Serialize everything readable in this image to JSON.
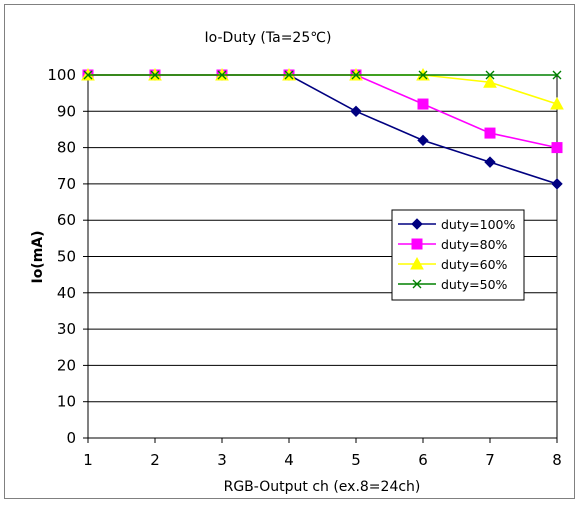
{
  "chart_data": {
    "type": "line",
    "title": "Io-Duty (Ta=25℃)",
    "xlabel": "RGB-Output ch (ex.8=24ch)",
    "ylabel": "Io(mA)",
    "x": [
      1,
      2,
      3,
      4,
      5,
      6,
      7,
      8
    ],
    "xlim": [
      1,
      8
    ],
    "ylim": [
      0,
      100
    ],
    "yticks": [
      0,
      10,
      20,
      30,
      40,
      50,
      60,
      70,
      80,
      90,
      100
    ],
    "grid": "horizontal",
    "legend_position": "right-middle",
    "series": [
      {
        "name": "duty=100%",
        "color": "#000080",
        "marker": "diamond",
        "values": [
          100,
          100,
          100,
          100,
          90,
          82,
          76,
          70
        ]
      },
      {
        "name": "duty=80%",
        "color": "#FF00FF",
        "marker": "square",
        "values": [
          100,
          100,
          100,
          100,
          100,
          92,
          84,
          80
        ]
      },
      {
        "name": "duty=60%",
        "color": "#FFFF00",
        "marker": "triangle",
        "values": [
          100,
          100,
          100,
          100,
          100,
          100,
          98,
          92
        ]
      },
      {
        "name": "duty=50%",
        "color": "#008000",
        "marker": "x",
        "values": [
          100,
          100,
          100,
          100,
          100,
          100,
          100,
          100
        ]
      }
    ]
  }
}
